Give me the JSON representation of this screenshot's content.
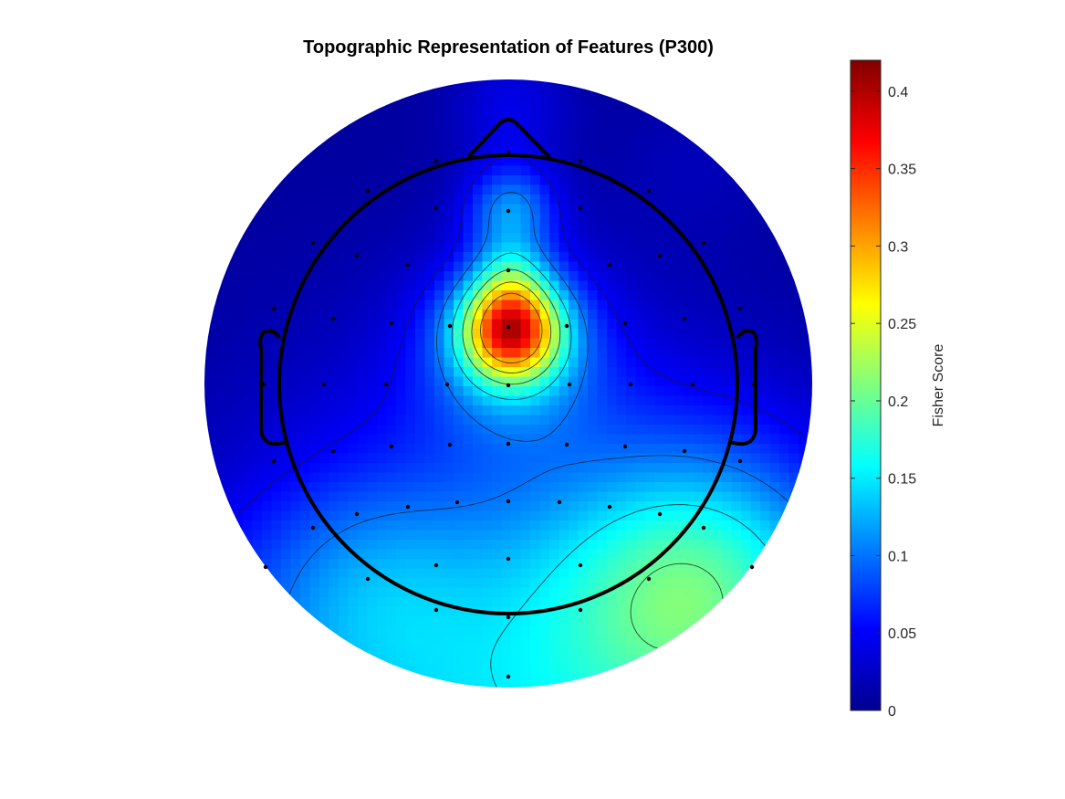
{
  "chart_data": {
    "type": "heatmap",
    "subtype": "scalp-topography",
    "title": "Topographic Representation of Features (P300)",
    "colorbar": {
      "label": "Fisher Score",
      "colormap": "jet",
      "range": [
        0,
        0.42
      ],
      "ticks": [
        0,
        0.05,
        0.1,
        0.15,
        0.2,
        0.25,
        0.3,
        0.35,
        0.4
      ],
      "tick_labels": [
        "0",
        "0.05",
        "0.1",
        "0.15",
        "0.2",
        "0.25",
        "0.3",
        "0.35",
        "0.4"
      ]
    },
    "peak": {
      "location": "central-frontal (Cz)",
      "value": 0.34
    },
    "regions": [
      {
        "location": "right-posterior (near P8)",
        "value": 0.19
      },
      {
        "location": "occipital",
        "value": 0.14
      },
      {
        "location": "frontal midline (Fz)",
        "value": 0.13
      },
      {
        "location": "lateral & temporal",
        "value": 0.02
      }
    ],
    "contour_levels": [
      0.05,
      0.1,
      0.15,
      0.2,
      0.25,
      0.3
    ],
    "grid": false,
    "legend": "none"
  }
}
